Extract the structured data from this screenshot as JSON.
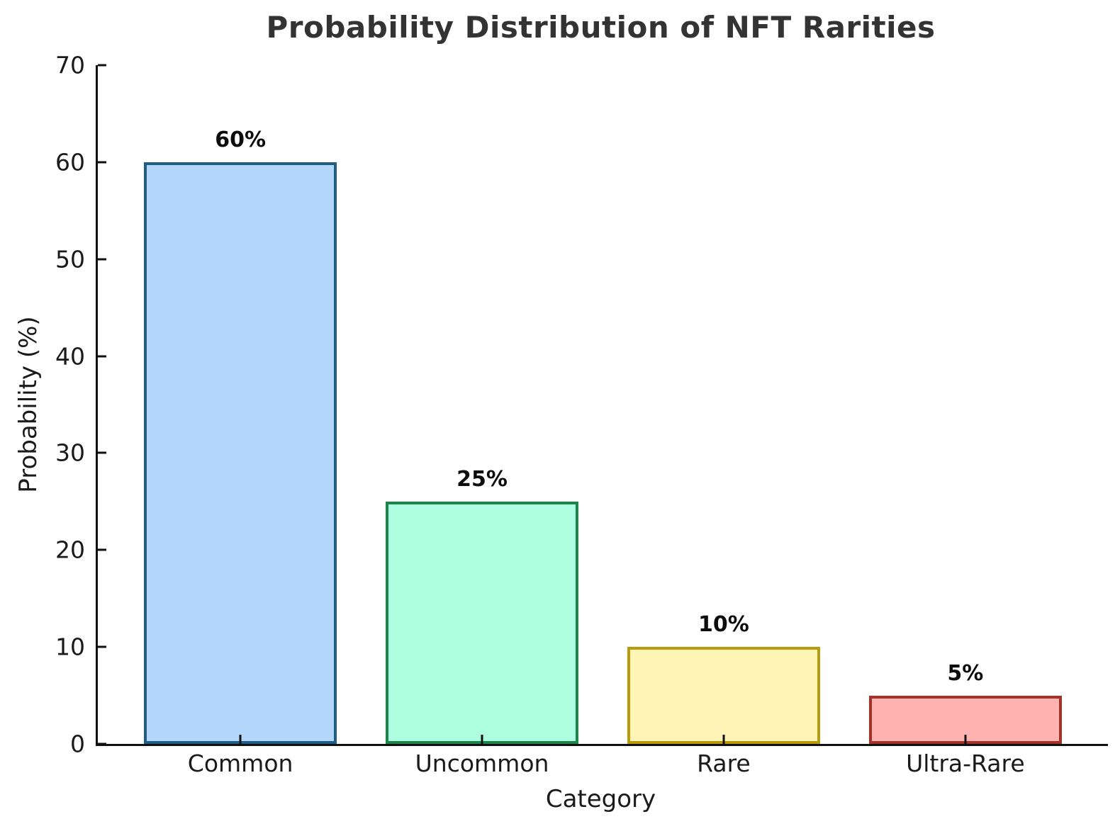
{
  "title": "Probability Distribution of NFT Rarities",
  "chart_data": {
    "type": "bar",
    "title": "Probability Distribution of NFT Rarities",
    "xlabel": "Category",
    "ylabel": "Probability (%)",
    "categories": [
      "Common",
      "Uncommon",
      "Rare",
      "Ultra-Rare"
    ],
    "values": [
      60,
      25,
      10,
      5
    ],
    "value_labels": [
      "60%",
      "25%",
      "10%",
      "5%"
    ],
    "ylim": [
      0,
      70
    ],
    "yticks": [
      0,
      10,
      20,
      30,
      40,
      50,
      60,
      70
    ],
    "grid": false,
    "legend": "none",
    "bar_fill_colors": [
      "#b3d7fb",
      "#aeffe0",
      "#fdf4b5",
      "#ffb2b0"
    ],
    "bar_edge_colors": [
      "#205d85",
      "#1e8449",
      "#b89b0d",
      "#a0342b"
    ],
    "axis_color": "#111111",
    "title_color": "#333333",
    "text_color": "#1a1a1a"
  }
}
